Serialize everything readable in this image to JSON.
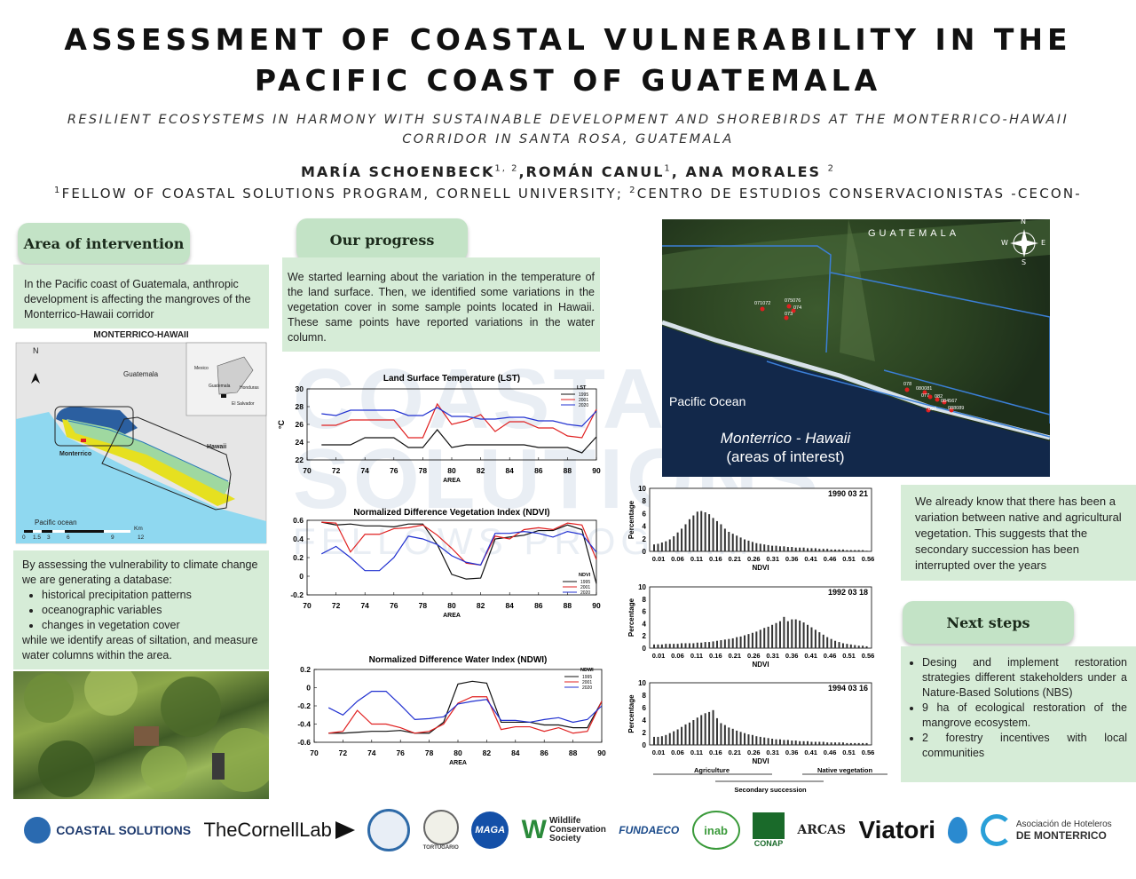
{
  "header": {
    "title_line1": "ASSESSMENT OF COASTAL VULNERABILITY IN THE",
    "title_line2": "PACIFIC COAST OF GUATEMALA",
    "subtitle_line1": "RESILIENT ECOSYSTEMS IN HARMONY WITH SUSTAINABLE DEVELOPMENT AND SHOREBIRDS AT THE MONTERRICO-HAWAII",
    "subtitle_line2": "CORRIDOR IN SANTA ROSA, GUATEMALA",
    "author1": "MARÍA SCHOENBECK",
    "author1_sup": "1, 2",
    "author2": ",ROMÁN CANUL",
    "author2_sup": "1",
    "author3": ", ANA MORALES ",
    "author3_sup": "2",
    "affil_sup1": "1",
    "affil1": "FELLOW OF COASTAL SOLUTIONS PROGRAM, CORNELL UNIVERSITY; ",
    "affil_sup2": "2",
    "affil2": "CENTRO DE ESTUDIOS CONSERVACIONISTAS -CECON-"
  },
  "area": {
    "heading": "Area of intervention",
    "text": "In the Pacific coast of Guatemala, anthropic development is affecting the mangroves of the Monterrico-Hawaii corridor",
    "map_title": "MONTERRICO-HAWAII",
    "map_labels": {
      "guatemala": "Guatemala",
      "hawaii": "Hawaii",
      "monterrico": "Monterrico",
      "ocean": "Pacific ocean",
      "north": "N",
      "km": "Km",
      "mexico": "Mexico",
      "honduras": "Honduras",
      "salvador": "El Salvador",
      "inset_guate": "Guatemala"
    },
    "scale_ticks": [
      "0",
      "1.5",
      "3",
      "6",
      "9",
      "12"
    ],
    "db_intro": "By assessing the vulnerability to climate change we are generating a database:",
    "db_items": [
      "historical precipitation patterns",
      "oceanographic variables",
      "changes in vegetation cover"
    ],
    "db_outro": "while we identify areas of siltation, and measure water columns within the area."
  },
  "progress": {
    "heading": "Our progress",
    "text": "We started learning about the variation in the temperature of the land surface. Then, we identified some variations in the vegetation cover in some sample points located in Hawaii. These same points have reported variations in the water column."
  },
  "satellite": {
    "country": "GUATEMALA",
    "ocean": "Pacific Ocean",
    "caption1": "Monterrico - Hawaii",
    "caption2": "(areas of interest)",
    "compass": {
      "n": "N",
      "s": "S",
      "e": "E",
      "w": "W"
    },
    "points": [
      "071072",
      "075076",
      "074",
      "073",
      "078",
      "080081",
      "077",
      "082",
      "084567",
      "090",
      "088089"
    ]
  },
  "right_text": "We already know that there has been a variation between native and agricultural vegetation. This suggests that the secondary succession has been interrupted over the years",
  "next": {
    "heading": "Next steps",
    "items": [
      "Desing and implement restoration strategies different stakeholders under a Nature-Based Solutions (NBS)",
      "9 ha of ecological restoration of the mangrove ecosystem.",
      "2 forestry incentives with local communities"
    ]
  },
  "watermark": {
    "line1": "COASTAL",
    "line2": "SOLUTIONS",
    "line3": "FELLOWS PROGRAM"
  },
  "logos": [
    "COASTAL SOLUTIONS",
    "TheCornellLab",
    "TORTUGARIO",
    "MAGA",
    "Wildlife",
    "Conservation",
    "Society",
    "FUNDAECO",
    "inab",
    "CONAP",
    "ARCAS",
    "Viatori",
    "Asociación de Hoteleros",
    "DE MONTERRICO"
  ],
  "colors": {
    "y1995": "#111111",
    "y2001": "#e02020",
    "y2020": "#2030d0",
    "panel": "#d6ecd7",
    "pill": "#c3e3c6"
  },
  "chart_data": [
    {
      "type": "line",
      "title": "Land Surface Temperature (LST)",
      "xlabel": "AREA",
      "ylabel": "°C",
      "ylim": [
        22,
        30
      ],
      "xlim": [
        70,
        90
      ],
      "xticks": [
        70,
        72,
        74,
        76,
        78,
        80,
        82,
        84,
        86,
        88,
        90
      ],
      "yticks": [
        22,
        24,
        26,
        28,
        30
      ],
      "legend_title": "LST",
      "x": [
        71,
        72,
        73,
        74,
        75,
        76,
        77,
        78,
        79,
        80,
        81,
        82,
        83,
        84,
        85,
        86,
        87,
        88,
        89,
        90
      ],
      "series": [
        {
          "name": "1995",
          "values": [
            23.7,
            23.7,
            23.7,
            24.5,
            24.5,
            24.5,
            23.4,
            23.4,
            25.4,
            23.4,
            23.7,
            23.7,
            23.7,
            23.7,
            23.7,
            23.4,
            23.4,
            23.4,
            22.8,
            24.6
          ]
        },
        {
          "name": "2001",
          "values": [
            25.9,
            25.9,
            26.5,
            26.5,
            26.5,
            26.5,
            24.5,
            24.5,
            28.3,
            26.0,
            26.4,
            27.1,
            25.2,
            26.3,
            26.3,
            25.6,
            25.6,
            24.7,
            24.5,
            27.7
          ]
        },
        {
          "name": "2020",
          "values": [
            27.2,
            27.0,
            27.6,
            27.6,
            27.6,
            27.6,
            27.0,
            27.0,
            27.9,
            26.9,
            26.9,
            26.6,
            26.6,
            26.8,
            26.8,
            26.4,
            26.4,
            26.0,
            25.8,
            27.5
          ]
        }
      ]
    },
    {
      "type": "line",
      "title": "Normalized Difference Vegetation Index (NDVI)",
      "xlabel": "AREA",
      "ylim": [
        -0.2,
        0.6
      ],
      "xlim": [
        70,
        90
      ],
      "xticks": [
        70,
        72,
        74,
        76,
        78,
        80,
        82,
        84,
        86,
        88,
        90
      ],
      "yticks": [
        -0.2,
        0,
        0.2,
        0.4,
        0.6
      ],
      "legend_title": "NDVI",
      "x": [
        71,
        72,
        73,
        74,
        75,
        76,
        77,
        78,
        79,
        80,
        81,
        82,
        83,
        84,
        85,
        86,
        87,
        88,
        89,
        90
      ],
      "series": [
        {
          "name": "1995",
          "values": [
            0.58,
            0.55,
            0.56,
            0.54,
            0.54,
            0.53,
            0.56,
            0.56,
            0.34,
            0.02,
            -0.03,
            -0.02,
            0.4,
            0.42,
            0.44,
            0.49,
            0.49,
            0.55,
            0.5,
            -0.08
          ]
        },
        {
          "name": "2001",
          "values": [
            0.58,
            0.57,
            0.26,
            0.45,
            0.45,
            0.51,
            0.52,
            0.55,
            0.44,
            0.3,
            0.14,
            0.12,
            0.43,
            0.4,
            0.5,
            0.52,
            0.5,
            0.57,
            0.55,
            0.18
          ]
        },
        {
          "name": "2020",
          "values": [
            0.24,
            0.32,
            0.2,
            0.06,
            0.06,
            0.2,
            0.43,
            0.4,
            0.34,
            0.22,
            0.15,
            0.12,
            0.46,
            0.46,
            0.48,
            0.46,
            0.42,
            0.48,
            0.45,
            0.26
          ]
        }
      ]
    },
    {
      "type": "line",
      "title": "Normalized Difference Water Index (NDWI)",
      "xlabel": "AREA",
      "ylim": [
        -0.6,
        0.2
      ],
      "xlim": [
        70,
        90
      ],
      "xticks": [
        70,
        72,
        74,
        76,
        78,
        80,
        82,
        84,
        86,
        88,
        90
      ],
      "yticks": [
        -0.6,
        -0.4,
        -0.2,
        0,
        0.2
      ],
      "legend_title": "NDWI",
      "x": [
        71,
        72,
        73,
        74,
        75,
        76,
        77,
        78,
        79,
        80,
        81,
        82,
        83,
        84,
        85,
        86,
        87,
        88,
        89,
        90
      ],
      "series": [
        {
          "name": "1995",
          "values": [
            -0.5,
            -0.5,
            -0.49,
            -0.48,
            -0.48,
            -0.47,
            -0.5,
            -0.5,
            -0.38,
            0.04,
            0.07,
            0.05,
            -0.38,
            -0.38,
            -0.38,
            -0.41,
            -0.41,
            -0.44,
            -0.44,
            -0.15
          ]
        },
        {
          "name": "2001",
          "values": [
            -0.5,
            -0.48,
            -0.25,
            -0.4,
            -0.4,
            -0.44,
            -0.5,
            -0.48,
            -0.4,
            -0.17,
            -0.1,
            -0.1,
            -0.46,
            -0.43,
            -0.43,
            -0.48,
            -0.44,
            -0.5,
            -0.48,
            -0.15
          ]
        },
        {
          "name": "2020",
          "values": [
            -0.22,
            -0.3,
            -0.15,
            -0.04,
            -0.04,
            -0.19,
            -0.35,
            -0.34,
            -0.32,
            -0.18,
            -0.15,
            -0.13,
            -0.36,
            -0.36,
            -0.38,
            -0.35,
            -0.33,
            -0.38,
            -0.35,
            -0.2
          ]
        }
      ]
    },
    {
      "type": "bar",
      "title": "1990 03 21",
      "xlabel": "NDVI",
      "ylabel": "Percentage",
      "ylim": [
        0,
        10
      ],
      "yticks": [
        0,
        2,
        4,
        6,
        8,
        10
      ],
      "xticks": [
        "0.01",
        "0.06",
        "0.11",
        "0.16",
        "0.21",
        "0.26",
        "0.31",
        "0.36",
        "0.41",
        "0.46",
        "0.51",
        "0.56"
      ],
      "values": [
        1.1,
        1.2,
        1.4,
        1.6,
        1.9,
        2.4,
        3.0,
        3.6,
        4.3,
        5.1,
        5.7,
        6.3,
        6.4,
        6.2,
        5.9,
        5.3,
        4.8,
        4.3,
        3.6,
        3.1,
        2.8,
        2.5,
        2.2,
        1.9,
        1.7,
        1.5,
        1.3,
        1.2,
        1.1,
        1.0,
        0.9,
        0.9,
        0.8,
        0.8,
        0.7,
        0.7,
        0.6,
        0.6,
        0.6,
        0.5,
        0.5,
        0.5,
        0.4,
        0.4,
        0.4,
        0.3,
        0.3,
        0.3,
        0.3,
        0.2,
        0.2,
        0.2,
        0.2,
        0.2,
        0.1
      ]
    },
    {
      "type": "bar",
      "title": "1992 03 18",
      "xlabel": "NDVI",
      "ylabel": "Percentage",
      "ylim": [
        0,
        10
      ],
      "yticks": [
        0,
        2,
        4,
        6,
        8,
        10
      ],
      "xticks": [
        "0.01",
        "0.06",
        "0.11",
        "0.16",
        "0.21",
        "0.26",
        "0.31",
        "0.36",
        "0.41",
        "0.46",
        "0.51",
        "0.56"
      ],
      "values": [
        0.6,
        0.6,
        0.6,
        0.7,
        0.7,
        0.7,
        0.7,
        0.8,
        0.8,
        0.8,
        0.8,
        0.9,
        0.9,
        1.0,
        1.0,
        1.1,
        1.2,
        1.3,
        1.4,
        1.5,
        1.6,
        1.8,
        1.9,
        2.1,
        2.3,
        2.5,
        2.7,
        3.0,
        3.3,
        3.5,
        3.8,
        4.1,
        4.4,
        5.1,
        4.4,
        4.7,
        4.7,
        4.5,
        4.2,
        3.8,
        3.4,
        3.0,
        2.6,
        2.2,
        1.8,
        1.5,
        1.2,
        1.0,
        0.8,
        0.7,
        0.6,
        0.5,
        0.4,
        0.4,
        0.3
      ]
    },
    {
      "type": "bar",
      "title": "1994 03 16",
      "xlabel": "NDVI",
      "ylabel": "Percentage",
      "ylim": [
        0,
        10
      ],
      "yticks": [
        0,
        2,
        4,
        6,
        8,
        10
      ],
      "xticks": [
        "0.01",
        "0.06",
        "0.11",
        "0.16",
        "0.21",
        "0.26",
        "0.31",
        "0.36",
        "0.41",
        "0.46",
        "0.51",
        "0.56"
      ],
      "values": [
        1.3,
        1.3,
        1.4,
        1.6,
        1.9,
        2.2,
        2.5,
        2.9,
        3.3,
        3.6,
        4.0,
        4.4,
        4.8,
        5.1,
        5.3,
        5.6,
        4.3,
        3.5,
        3.2,
        2.8,
        2.6,
        2.3,
        2.1,
        1.9,
        1.7,
        1.6,
        1.4,
        1.3,
        1.2,
        1.1,
        1.0,
        0.9,
        0.9,
        0.8,
        0.8,
        0.7,
        0.7,
        0.6,
        0.6,
        0.6,
        0.5,
        0.5,
        0.5,
        0.5,
        0.4,
        0.4,
        0.4,
        0.4,
        0.4,
        0.3,
        0.3,
        0.3,
        0.3,
        0.3,
        0.3
      ],
      "annotations": {
        "agriculture": "Agriculture",
        "native": "Native vegetation",
        "secondary": "Secondary succession"
      }
    }
  ]
}
